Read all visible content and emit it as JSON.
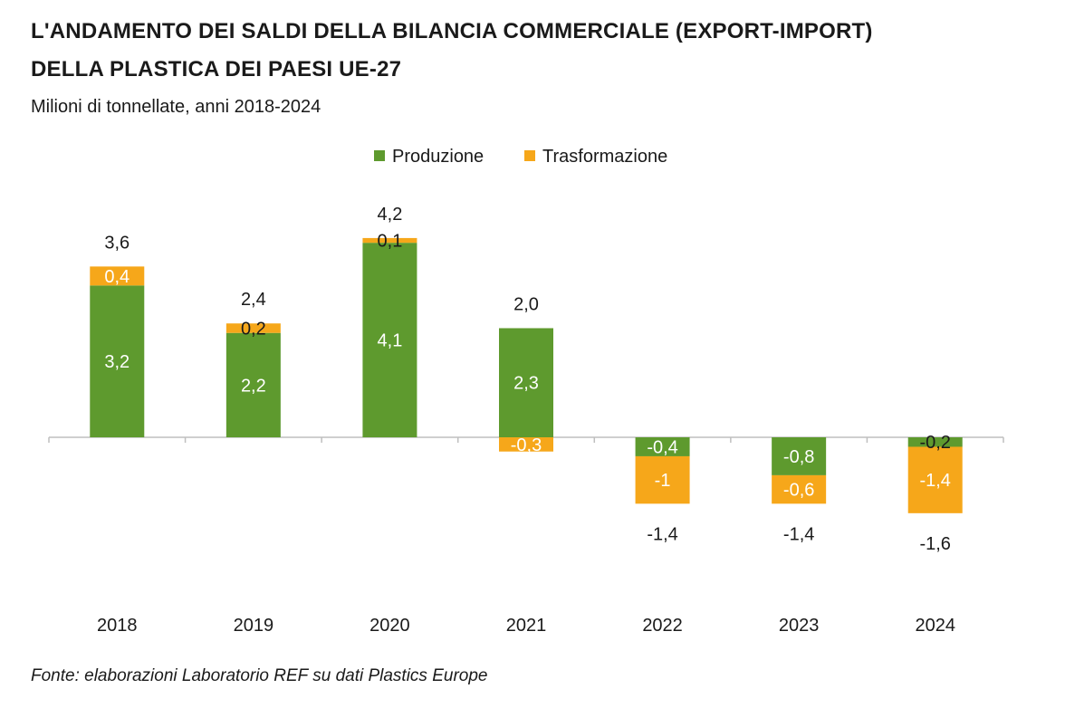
{
  "title_line1": "L'ANDAMENTO DEI SALDI DELLA BILANCIA COMMERCIALE (EXPORT-IMPORT)",
  "title_line2": "DELLA PLASTICA DEI PAESI UE-27",
  "subtitle": "Milioni di tonnellate, anni 2018-2024",
  "source": "Fonte: elaborazioni Laboratorio REF su dati Plastics Europe",
  "colors": {
    "produzione": "#5e9a2e",
    "trasformazione": "#f6a71a",
    "axis": "#bfbfbf",
    "text": "#1a1a1a"
  },
  "chart_data": {
    "type": "bar",
    "stacked": true,
    "categories": [
      "2018",
      "2019",
      "2020",
      "2021",
      "2022",
      "2023",
      "2024"
    ],
    "series": [
      {
        "name": "Produzione",
        "values": [
          3.2,
          2.2,
          4.1,
          2.3,
          -0.4,
          -0.8,
          -0.2
        ],
        "labels": [
          "3,2",
          "2,2",
          "4,1",
          "2,3",
          "-0,4",
          "-0,8",
          "-0,2"
        ]
      },
      {
        "name": "Trasformazione",
        "values": [
          0.4,
          0.2,
          0.1,
          -0.3,
          -1.0,
          -0.6,
          -1.4
        ],
        "labels": [
          "0,4",
          "0,2",
          "0,1",
          "-0,3",
          "-1",
          "-0,6",
          "-1,4"
        ]
      }
    ],
    "totals": [
      3.6,
      2.4,
      4.2,
      2.0,
      -1.4,
      -1.4,
      -1.6
    ],
    "total_labels": [
      "3,6",
      "2,4",
      "4,2",
      "2,0",
      "-1,4",
      "-1,4",
      "-1,6"
    ],
    "ylim": [
      -2.5,
      4.5
    ],
    "grid": false,
    "legend_position": "top"
  }
}
